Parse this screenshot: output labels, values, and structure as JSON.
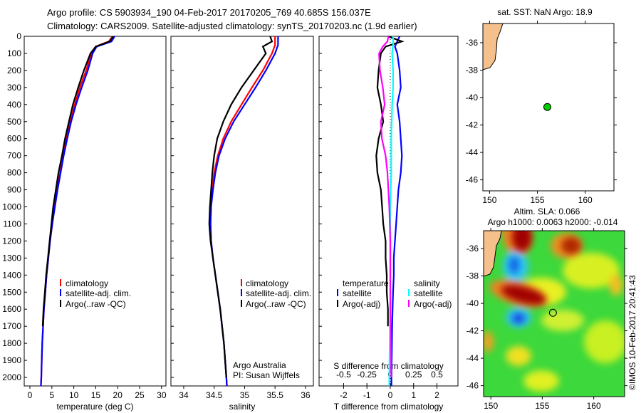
{
  "header": {
    "line1": "Argo profile: CS 5903934_190 04-Feb-2017 20170205_769 40.685S 156.037E",
    "line2": "Climatology: CARS2009. Satellite-adjusted climatology: synTS_20170203.nc (1.9d earlier)"
  },
  "colors": {
    "climatology": "#ff0000",
    "satellite": "#0000ff",
    "argo": "#000000",
    "sal_satellite": "#00ffff",
    "sal_argo": "#ff00ff",
    "land": "#f5c08c"
  },
  "chart_data": [
    {
      "type": "line",
      "id": "temperature",
      "xlabel": "temperature (deg C)",
      "ylabel": "depth",
      "xlim": [
        -1.3,
        31
      ],
      "ylim": [
        2050,
        0
      ],
      "xticks": [
        0,
        5,
        10,
        15,
        20,
        25,
        30
      ],
      "yticks": [
        0,
        100,
        200,
        300,
        400,
        500,
        600,
        700,
        800,
        900,
        1000,
        1100,
        1200,
        1300,
        1400,
        1500,
        1600,
        1700,
        1800,
        1900,
        2000
      ],
      "legend": [
        "climatology",
        "satellite-adj. clim.",
        "Argo(..raw -QC)"
      ],
      "series": [
        {
          "name": "climatology",
          "color": "#ff0000",
          "points": [
            [
              0,
              18.8
            ],
            [
              30,
              18
            ],
            [
              60,
              15
            ],
            [
              100,
              14
            ],
            [
              200,
              12.8
            ],
            [
              300,
              11.4
            ],
            [
              400,
              10.2
            ],
            [
              500,
              9.2
            ],
            [
              600,
              8.3
            ],
            [
              700,
              7.6
            ],
            [
              800,
              6.9
            ],
            [
              900,
              6.2
            ],
            [
              1000,
              5.6
            ],
            [
              1100,
              5.1
            ],
            [
              1200,
              4.6
            ],
            [
              1300,
              4.2
            ],
            [
              1400,
              3.8
            ],
            [
              1500,
              3.5
            ],
            [
              1600,
              3.2
            ],
            [
              1700,
              3
            ],
            [
              1800,
              2.8
            ],
            [
              1900,
              2.7
            ],
            [
              2000,
              2.6
            ],
            [
              2050,
              2.5
            ]
          ]
        },
        {
          "name": "satellite-adj. clim.",
          "color": "#0000ff",
          "points": [
            [
              0,
              19.3
            ],
            [
              30,
              18.6
            ],
            [
              60,
              15.2
            ],
            [
              100,
              14.3
            ],
            [
              200,
              13.2
            ],
            [
              300,
              11.8
            ],
            [
              400,
              10.5
            ],
            [
              500,
              9.4
            ],
            [
              600,
              8.5
            ],
            [
              700,
              7.7
            ],
            [
              800,
              7
            ],
            [
              900,
              6.3
            ],
            [
              1000,
              5.7
            ],
            [
              1100,
              5.1
            ],
            [
              1200,
              4.6
            ],
            [
              1300,
              4.2
            ],
            [
              1400,
              3.8
            ],
            [
              1500,
              3.5
            ],
            [
              1600,
              3.2
            ],
            [
              1700,
              3
            ],
            [
              1800,
              2.8
            ],
            [
              1900,
              2.7
            ],
            [
              2000,
              2.6
            ],
            [
              2050,
              2.5
            ]
          ]
        },
        {
          "name": "Argo(..raw -QC)",
          "color": "#000000",
          "points": [
            [
              0,
              19
            ],
            [
              30,
              18.2
            ],
            [
              60,
              15
            ],
            [
              100,
              13.8
            ],
            [
              200,
              12.3
            ],
            [
              300,
              11
            ],
            [
              400,
              9.8
            ],
            [
              500,
              8.9
            ],
            [
              600,
              8
            ],
            [
              700,
              7.3
            ],
            [
              800,
              6.5
            ],
            [
              900,
              5.9
            ],
            [
              1000,
              5.3
            ],
            [
              1100,
              4.9
            ],
            [
              1200,
              4.5
            ],
            [
              1300,
              4.1
            ],
            [
              1400,
              3.7
            ],
            [
              1500,
              3.4
            ],
            [
              1600,
              3.1
            ],
            [
              1700,
              2.9
            ]
          ]
        }
      ]
    },
    {
      "type": "line",
      "id": "salinity",
      "xlabel": "salinity",
      "xlim": [
        33.79,
        36.13
      ],
      "ylim": [
        2050,
        0
      ],
      "xticks": [
        34,
        34.5,
        35,
        35.5,
        36
      ],
      "legend": [
        "climatology",
        "satellite-adj. clim.",
        "Argo(..raw -QC)"
      ],
      "annotation": [
        "Argo Australia",
        "PI: Susan Wijffels"
      ],
      "series": [
        {
          "name": "climatology",
          "color": "#ff0000",
          "points": [
            [
              0,
              35.5
            ],
            [
              50,
              35.5
            ],
            [
              100,
              35.45
            ],
            [
              200,
              35.3
            ],
            [
              300,
              35.12
            ],
            [
              400,
              34.95
            ],
            [
              500,
              34.78
            ],
            [
              600,
              34.65
            ],
            [
              700,
              34.56
            ],
            [
              800,
              34.5
            ],
            [
              900,
              34.47
            ],
            [
              1000,
              34.45
            ],
            [
              1100,
              34.44
            ],
            [
              1200,
              34.45
            ],
            [
              1300,
              34.48
            ],
            [
              1400,
              34.52
            ],
            [
              1500,
              34.56
            ],
            [
              1600,
              34.6
            ],
            [
              1700,
              34.63
            ],
            [
              1800,
              34.66
            ],
            [
              1900,
              34.68
            ],
            [
              2000,
              34.7
            ],
            [
              2050,
              34.71
            ]
          ]
        },
        {
          "name": "satellite-adj. clim.",
          "color": "#0000ff",
          "points": [
            [
              0,
              35.55
            ],
            [
              50,
              35.55
            ],
            [
              100,
              35.5
            ],
            [
              200,
              35.35
            ],
            [
              300,
              35.18
            ],
            [
              400,
              35
            ],
            [
              500,
              34.82
            ],
            [
              600,
              34.68
            ],
            [
              700,
              34.58
            ],
            [
              800,
              34.52
            ],
            [
              900,
              34.48
            ],
            [
              1000,
              34.45
            ],
            [
              1100,
              34.44
            ],
            [
              1200,
              34.45
            ],
            [
              1300,
              34.48
            ],
            [
              1400,
              34.52
            ],
            [
              1500,
              34.56
            ],
            [
              1600,
              34.6
            ],
            [
              1700,
              34.63
            ],
            [
              1800,
              34.66
            ],
            [
              1900,
              34.68
            ],
            [
              2000,
              34.7
            ],
            [
              2050,
              34.71
            ]
          ]
        },
        {
          "name": "Argo(..raw -QC)",
          "color": "#000000",
          "points": [
            [
              0,
              35.42
            ],
            [
              30,
              35.45
            ],
            [
              60,
              35.3
            ],
            [
              100,
              35.35
            ],
            [
              200,
              35.15
            ],
            [
              300,
              34.95
            ],
            [
              400,
              34.78
            ],
            [
              500,
              34.65
            ],
            [
              600,
              34.55
            ],
            [
              700,
              34.5
            ],
            [
              800,
              34.47
            ],
            [
              900,
              34.45
            ],
            [
              1000,
              34.43
            ],
            [
              1100,
              34.42
            ],
            [
              1200,
              34.44
            ],
            [
              1300,
              34.48
            ],
            [
              1400,
              34.52
            ],
            [
              1500,
              34.56
            ],
            [
              1600,
              34.6
            ],
            [
              1700,
              34.63
            ],
            [
              1800,
              34.66
            ],
            [
              1900,
              34.68
            ],
            [
              2000,
              34.7
            ]
          ]
        }
      ]
    },
    {
      "type": "line",
      "id": "difference",
      "xlabel": "T difference from climatology",
      "x2label": "S difference from climatology",
      "xlim": [
        -3.05,
        2.9
      ],
      "ylim": [
        2050,
        0
      ],
      "xticks": [
        -2,
        -1,
        0,
        1,
        2
      ],
      "x2ticks": [
        -0.5,
        -0.25,
        0,
        0.25,
        0.5
      ],
      "legend_t": {
        "title": "temperature",
        "items": [
          "satellite",
          "Argo(-adj)"
        ]
      },
      "legend_s": {
        "title": "salinity",
        "items": [
          "satellite",
          "Argo(-adj)"
        ]
      },
      "series": [
        {
          "name": "T satellite",
          "axis": "T",
          "color": "#0000ff",
          "points": [
            [
              0,
              0.4
            ],
            [
              30,
              0.3
            ],
            [
              60,
              0.2
            ],
            [
              100,
              0.3
            ],
            [
              200,
              0.4
            ],
            [
              300,
              0.45
            ],
            [
              400,
              0.3
            ],
            [
              500,
              0.4
            ],
            [
              600,
              0.45
            ],
            [
              700,
              0.5
            ],
            [
              800,
              0.45
            ],
            [
              900,
              0.35
            ],
            [
              1000,
              0.3
            ],
            [
              1100,
              0.25
            ],
            [
              1200,
              0.2
            ],
            [
              1300,
              0.15
            ],
            [
              1400,
              0.15
            ],
            [
              1500,
              0.12
            ],
            [
              1600,
              0.1
            ],
            [
              1700,
              0.08
            ],
            [
              2000,
              0.05
            ],
            [
              2050,
              0.05
            ]
          ]
        },
        {
          "name": "T Argo(-adj)",
          "axis": "T",
          "color": "#000000",
          "points": [
            [
              0,
              -0.1
            ],
            [
              30,
              0.5
            ],
            [
              60,
              -0.2
            ],
            [
              100,
              -0.4
            ],
            [
              200,
              -0.5
            ],
            [
              300,
              -0.55
            ],
            [
              400,
              -0.4
            ],
            [
              500,
              -0.3
            ],
            [
              600,
              -0.5
            ],
            [
              700,
              -0.6
            ],
            [
              800,
              -0.55
            ],
            [
              900,
              -0.4
            ],
            [
              1000,
              -0.35
            ],
            [
              1100,
              -0.3
            ],
            [
              1200,
              -0.2
            ],
            [
              1300,
              -0.2
            ],
            [
              1400,
              -0.15
            ],
            [
              1500,
              -0.15
            ],
            [
              1600,
              -0.1
            ],
            [
              1700,
              -0.1
            ]
          ]
        },
        {
          "name": "S satellite",
          "axis": "S",
          "color": "#00ffff",
          "points": [
            [
              0,
              0.03
            ],
            [
              50,
              0.03
            ],
            [
              100,
              0.02
            ],
            [
              200,
              0.03
            ],
            [
              300,
              0.03
            ],
            [
              400,
              0.02
            ],
            [
              600,
              0.01
            ],
            [
              800,
              0.01
            ],
            [
              1000,
              0
            ],
            [
              1200,
              0
            ],
            [
              1500,
              0
            ],
            [
              2000,
              -0.01
            ],
            [
              2050,
              -0.01
            ]
          ]
        },
        {
          "name": "S Argo(-adj)",
          "axis": "S",
          "color": "#ff00ff",
          "points": [
            [
              0,
              -0.02
            ],
            [
              30,
              -0.03
            ],
            [
              60,
              -0.08
            ],
            [
              100,
              -0.12
            ],
            [
              200,
              -0.11
            ],
            [
              300,
              -0.08
            ],
            [
              400,
              -0.06
            ],
            [
              500,
              -0.1
            ],
            [
              600,
              -0.09
            ],
            [
              700,
              -0.05
            ],
            [
              800,
              -0.03
            ],
            [
              900,
              -0.02
            ],
            [
              1000,
              -0.01
            ],
            [
              1200,
              0
            ],
            [
              1500,
              0
            ],
            [
              2000,
              0.01
            ]
          ]
        }
      ]
    },
    {
      "type": "scatter",
      "id": "sst-map",
      "title": "sat. SST: NaN  Argo: 18.9",
      "xlim": [
        149.3,
        163
      ],
      "ylim": [
        -46.8,
        -34.6
      ],
      "xticks": [
        150,
        155,
        160
      ],
      "yticks": [
        -36,
        -38,
        -40,
        -42,
        -44,
        -46
      ],
      "point": [
        156.037,
        -40.685
      ]
    },
    {
      "type": "heatmap",
      "id": "sla-map",
      "title_line1": "Altim. SLA: 0.066",
      "title_line2": "Argo h1000: 0.0063 h2000: -0.014",
      "xlim": [
        149.3,
        163
      ],
      "ylim": [
        -46.8,
        -34.7
      ],
      "xticks": [
        150,
        155,
        160
      ],
      "yticks": [
        -36,
        -38,
        -40,
        -42,
        -44,
        -46
      ],
      "point": [
        156.037,
        -40.685
      ]
    }
  ],
  "footer": {
    "copyright": "©IMOS 10-Feb-2017 20:41:43"
  }
}
